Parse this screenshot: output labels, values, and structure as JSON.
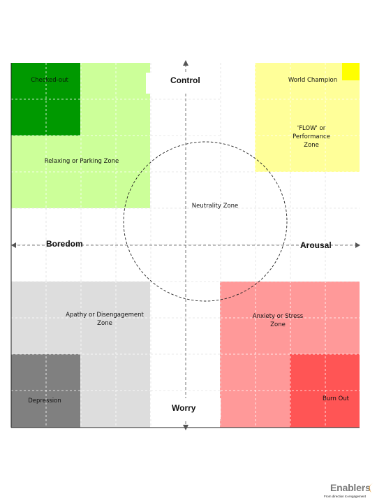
{
  "colors": {
    "checked_out": "#009900",
    "relaxing": "#ccff99",
    "flow": "#ffff99",
    "world_champion": "#ffff00",
    "apathy": "#dddddd",
    "depression": "#808080",
    "anxiety": "#ff9999",
    "burn_out": "#ff5555",
    "grid_line": "#c8c8c8",
    "axis_line": "#555555"
  },
  "zones": {
    "checked_out": "Checked-out",
    "relaxing": "Relaxing or Parking Zone",
    "world_champion": "World Champion",
    "flow": [
      "'FLOW' or",
      "Performance",
      "Zone"
    ],
    "neutrality": "Neutrality Zone",
    "apathy": [
      "Apathy or Disengagement",
      "Zone"
    ],
    "anxiety": [
      "Anxiety or Stress",
      "Zone"
    ],
    "depression": "Depression",
    "burn_out": "Burn Out"
  },
  "axes": {
    "top": "Control",
    "bottom": "Worry",
    "left": "Boredom",
    "right": "Arousal"
  },
  "logo": {
    "name": "Enablers",
    "tagline": "From direction to engagement"
  }
}
